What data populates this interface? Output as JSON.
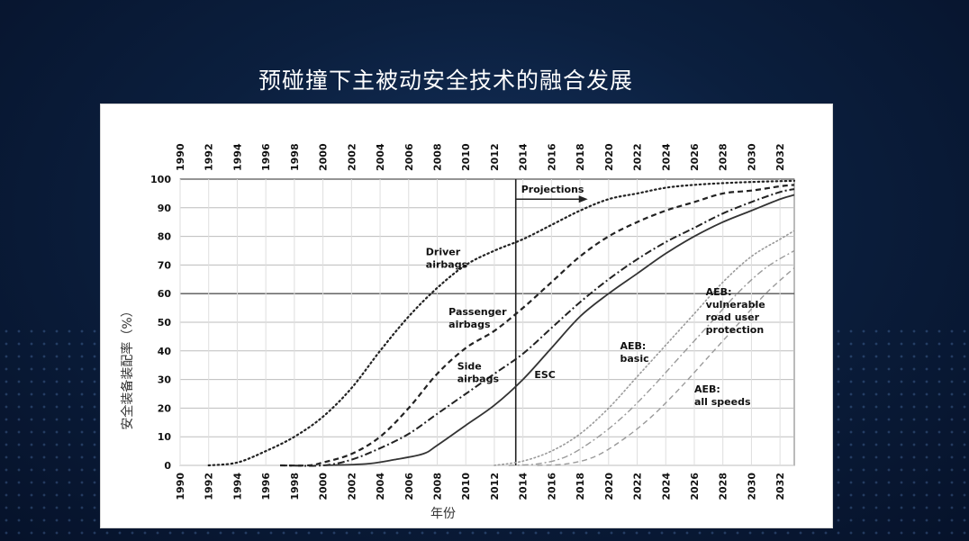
{
  "slide": {
    "title": "预碰撞下主被动安全技术的融合发展"
  },
  "colors": {
    "background": "#0b1f3e",
    "series": "#222222",
    "series_light": "#888888",
    "grid": "#cfcfcf"
  },
  "chart_data": {
    "type": "line",
    "title": "",
    "xlabel": "年份",
    "ylabel": "安全装备装配率（%）",
    "xlim": [
      1990,
      2033
    ],
    "ylim": [
      0,
      100
    ],
    "x_ticks": [
      "1990",
      "1992",
      "1994",
      "1996",
      "1998",
      "2000",
      "2002",
      "2004",
      "2006",
      "2008",
      "2010",
      "2012",
      "2014",
      "2016",
      "2018",
      "2020",
      "2022",
      "2024",
      "2026",
      "2028",
      "2030",
      "2032"
    ],
    "y_ticks": [
      "0",
      "10",
      "20",
      "30",
      "40",
      "50",
      "60",
      "70",
      "80",
      "90",
      "100"
    ],
    "grid": true,
    "projection_line_x": 2013.5,
    "projection_label": "Projections",
    "series": [
      {
        "name": "Driver airbags",
        "label_lines": [
          "Driver",
          "airbags"
        ],
        "style": "dotted",
        "points": [
          [
            1992,
            0
          ],
          [
            1994,
            1
          ],
          [
            1996,
            5
          ],
          [
            1998,
            10
          ],
          [
            2000,
            17
          ],
          [
            2002,
            27
          ],
          [
            2004,
            40
          ],
          [
            2006,
            52
          ],
          [
            2008,
            62
          ],
          [
            2010,
            70
          ],
          [
            2012,
            75
          ],
          [
            2014,
            79
          ],
          [
            2016,
            84
          ],
          [
            2018,
            89
          ],
          [
            2020,
            93
          ],
          [
            2022,
            95
          ],
          [
            2024,
            97
          ],
          [
            2026,
            98
          ],
          [
            2028,
            98.6
          ],
          [
            2030,
            99
          ],
          [
            2032,
            99.3
          ],
          [
            2033,
            99.4
          ]
        ]
      },
      {
        "name": "Passenger airbags",
        "label_lines": [
          "Passenger",
          "airbags"
        ],
        "style": "dashed",
        "points": [
          [
            1997,
            0
          ],
          [
            1999,
            0
          ],
          [
            2000,
            1
          ],
          [
            2002,
            4
          ],
          [
            2004,
            10
          ],
          [
            2006,
            20
          ],
          [
            2008,
            32
          ],
          [
            2010,
            41
          ],
          [
            2012,
            47
          ],
          [
            2014,
            55
          ],
          [
            2016,
            64
          ],
          [
            2018,
            73
          ],
          [
            2020,
            80
          ],
          [
            2022,
            85
          ],
          [
            2024,
            89
          ],
          [
            2026,
            92
          ],
          [
            2028,
            95
          ],
          [
            2030,
            96
          ],
          [
            2032,
            97.5
          ],
          [
            2033,
            98
          ]
        ]
      },
      {
        "name": "Side airbags",
        "label_lines": [
          "Side",
          "airbags"
        ],
        "style": "dashdot",
        "points": [
          [
            1997,
            0
          ],
          [
            2000,
            0
          ],
          [
            2002,
            2
          ],
          [
            2004,
            6
          ],
          [
            2006,
            11
          ],
          [
            2008,
            18
          ],
          [
            2010,
            25
          ],
          [
            2012,
            32
          ],
          [
            2014,
            39
          ],
          [
            2016,
            48
          ],
          [
            2018,
            57
          ],
          [
            2020,
            65
          ],
          [
            2022,
            72
          ],
          [
            2024,
            78
          ],
          [
            2026,
            83
          ],
          [
            2028,
            88
          ],
          [
            2030,
            92
          ],
          [
            2032,
            95.5
          ],
          [
            2033,
            96.5
          ]
        ]
      },
      {
        "name": "ESC",
        "label_lines": [
          "ESC"
        ],
        "style": "solid",
        "points": [
          [
            2000,
            0
          ],
          [
            2003,
            0.5
          ],
          [
            2005,
            2
          ],
          [
            2007,
            4
          ],
          [
            2008,
            7
          ],
          [
            2010,
            14
          ],
          [
            2012,
            21
          ],
          [
            2014,
            30
          ],
          [
            2016,
            41
          ],
          [
            2018,
            52
          ],
          [
            2020,
            60
          ],
          [
            2022,
            67
          ],
          [
            2024,
            74
          ],
          [
            2026,
            80
          ],
          [
            2028,
            85
          ],
          [
            2030,
            89
          ],
          [
            2032,
            93
          ],
          [
            2033,
            94.5
          ]
        ]
      },
      {
        "name": "AEB: basic",
        "label_lines": [
          "AEB:",
          "basic"
        ],
        "style": "dotted-light",
        "points": [
          [
            2012,
            0
          ],
          [
            2014,
            1.5
          ],
          [
            2016,
            5
          ],
          [
            2018,
            11
          ],
          [
            2020,
            20
          ],
          [
            2022,
            31
          ],
          [
            2024,
            42
          ],
          [
            2026,
            53
          ],
          [
            2028,
            64
          ],
          [
            2030,
            73
          ],
          [
            2032,
            79
          ],
          [
            2033,
            82
          ]
        ]
      },
      {
        "name": "AEB: vulnerable road user protection",
        "label_lines": [
          "AEB:",
          "vulnerable",
          "road user",
          "protection"
        ],
        "style": "dashdot-light",
        "points": [
          [
            2013,
            0
          ],
          [
            2015,
            0.5
          ],
          [
            2017,
            3
          ],
          [
            2019,
            9
          ],
          [
            2021,
            17
          ],
          [
            2023,
            27
          ],
          [
            2025,
            38
          ],
          [
            2027,
            49
          ],
          [
            2029,
            60
          ],
          [
            2031,
            69
          ],
          [
            2033,
            75
          ]
        ]
      },
      {
        "name": "AEB: all speeds",
        "label_lines": [
          "AEB:",
          "all speeds"
        ],
        "style": "dashed-light",
        "points": [
          [
            2015,
            0
          ],
          [
            2017,
            0.5
          ],
          [
            2019,
            3
          ],
          [
            2021,
            9
          ],
          [
            2023,
            17
          ],
          [
            2025,
            27
          ],
          [
            2027,
            38
          ],
          [
            2029,
            49
          ],
          [
            2031,
            60
          ],
          [
            2033,
            69
          ]
        ]
      }
    ]
  }
}
